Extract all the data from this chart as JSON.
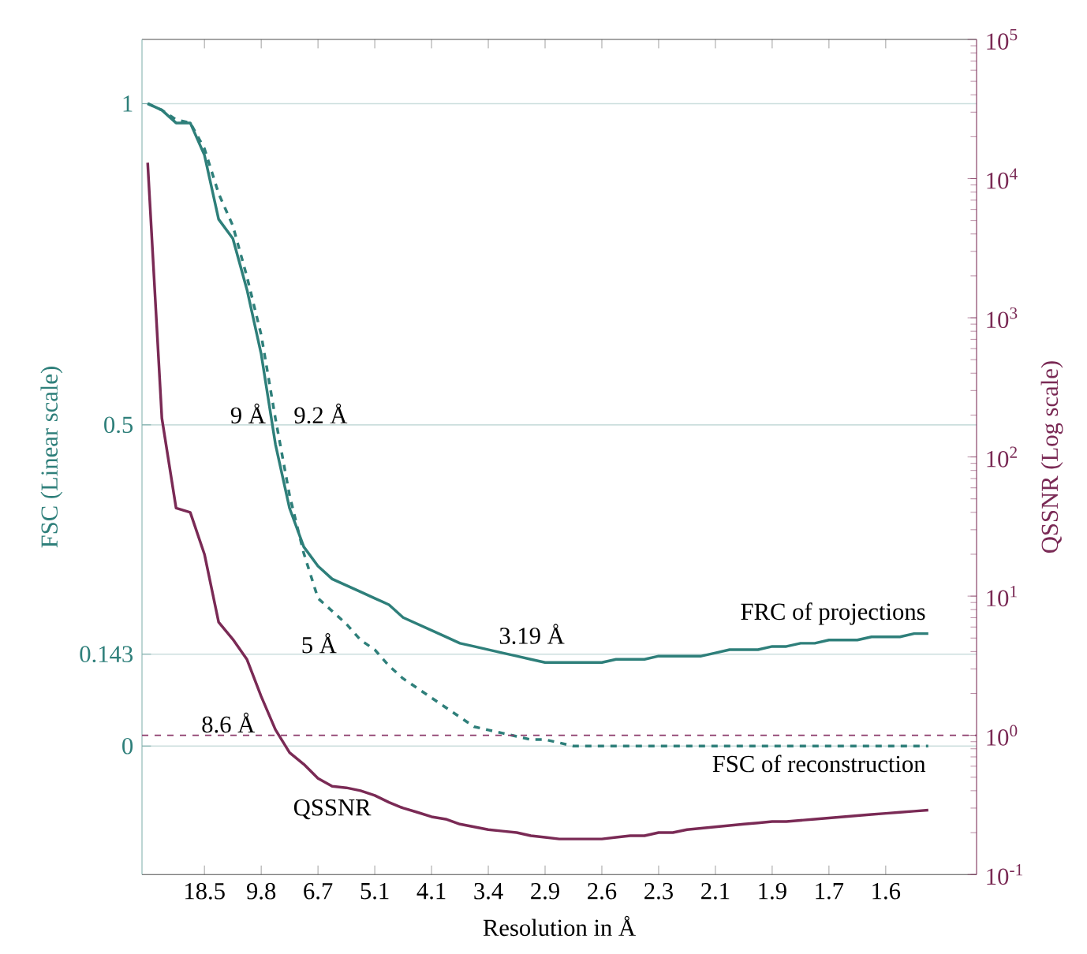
{
  "chart_data": {
    "type": "line",
    "xlabel": "Resolution in Å",
    "ylabel": "FSC (Linear scale)",
    "y2label": "QSSNR (Log scale)",
    "categories": [
      null,
      null,
      null,
      null,
      "18.5",
      null,
      null,
      null,
      "9.8",
      null,
      null,
      null,
      "6.7",
      null,
      null,
      null,
      "5.1",
      null,
      null,
      null,
      "4.1",
      null,
      null,
      null,
      "3.4",
      null,
      null,
      null,
      "2.9",
      null,
      null,
      null,
      "2.6",
      null,
      null,
      null,
      "2.3",
      null,
      null,
      null,
      "2.1",
      null,
      null,
      null,
      "1.9",
      null,
      null,
      null,
      "1.7",
      null,
      null,
      null,
      "1.6",
      null,
      null,
      null
    ],
    "ylim": [
      -0.2,
      1.1
    ],
    "yticks": [
      0,
      0.143,
      0.5,
      1
    ],
    "y2lim": [
      0.1,
      100000
    ],
    "y2ticks": [
      {
        "value": 0.1,
        "label": "10$^{-1}$"
      },
      {
        "value": 1,
        "label": "10$^{0}$"
      },
      {
        "value": 10,
        "label": "10$^{1}$"
      },
      {
        "value": 100,
        "label": "10$^{2}$"
      },
      {
        "value": 1000,
        "label": "10$^{3}$"
      },
      {
        "value": 10000,
        "label": "10$^{4}$"
      },
      {
        "value": 100000,
        "label": "10$^{5}$"
      }
    ],
    "log": "y2",
    "grid": "y",
    "series": [
      {
        "name": "FRC of projections",
        "color": "#2e7f7a",
        "line_style": "solid",
        "values": [
          1.0,
          0.99,
          0.97,
          0.97,
          0.92,
          0.82,
          0.79,
          0.71,
          0.61,
          0.47,
          0.37,
          0.31,
          0.28,
          0.26,
          0.25,
          0.24,
          0.23,
          0.22,
          0.2,
          0.19,
          0.18,
          0.17,
          0.16,
          0.155,
          0.15,
          0.145,
          0.14,
          0.135,
          0.13,
          0.13,
          0.13,
          0.13,
          0.13,
          0.135,
          0.135,
          0.135,
          0.14,
          0.14,
          0.14,
          0.14,
          0.145,
          0.15,
          0.15,
          0.15,
          0.155,
          0.155,
          0.16,
          0.16,
          0.165,
          0.165,
          0.165,
          0.17,
          0.17,
          0.17,
          0.175,
          0.175
        ]
      },
      {
        "name": "FSC of reconstruction",
        "color": "#2e7f7a",
        "line_style": "dashed",
        "values": [
          1.0,
          0.99,
          0.975,
          0.97,
          0.93,
          0.86,
          0.81,
          0.73,
          0.64,
          0.51,
          0.39,
          0.3,
          0.23,
          0.21,
          0.19,
          0.165,
          0.15,
          0.125,
          0.105,
          0.09,
          0.075,
          0.06,
          0.045,
          0.03,
          0.025,
          0.02,
          0.015,
          0.01,
          0.01,
          0.005,
          0,
          0,
          0,
          0,
          0,
          0,
          0,
          0,
          0,
          0,
          0,
          0,
          0,
          0,
          0,
          0,
          0,
          0,
          0,
          0,
          0,
          0,
          0,
          0,
          0,
          0
        ]
      },
      {
        "name": "QSSNR",
        "color": "#7a2a55",
        "line_style": "solid",
        "axis": "y2",
        "values": [
          13000,
          190,
          43,
          40,
          20,
          6.5,
          4.9,
          3.5,
          1.9,
          1.1,
          0.75,
          0.62,
          0.49,
          0.43,
          0.42,
          0.4,
          0.37,
          0.33,
          0.3,
          0.28,
          0.26,
          0.25,
          0.23,
          0.22,
          0.21,
          0.205,
          0.2,
          0.19,
          0.185,
          0.18,
          0.18,
          0.18,
          0.18,
          0.185,
          0.19,
          0.19,
          0.2,
          0.2,
          0.21,
          0.215,
          0.22,
          0.225,
          0.23,
          0.235,
          0.24,
          0.24,
          0.245,
          0.25,
          0.255,
          0.26,
          0.265,
          0.27,
          0.275,
          0.28,
          0.285,
          0.29
        ]
      }
    ],
    "ref_lines": [
      {
        "axis": "y2",
        "value": 1,
        "label": "8.6 Å",
        "color": "#8b3a6b",
        "line_style": "dashed"
      }
    ],
    "annotations": [
      "9 Å",
      "9.2 Å",
      "5 Å",
      "3.19 Å"
    ]
  }
}
